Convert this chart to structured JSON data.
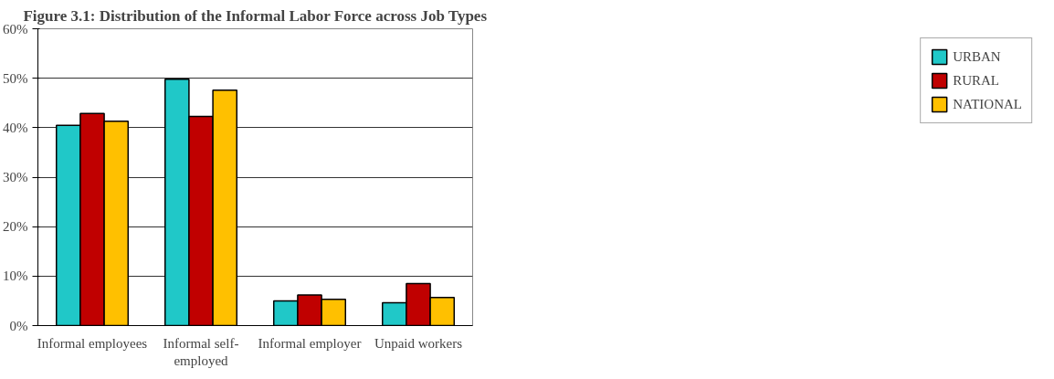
{
  "chart_data": {
    "type": "bar",
    "title": "Figure 3.1: Distribution of the Informal Labor Force across Job Types",
    "categories": [
      "Informal employees",
      "Informal self-employed",
      "Informal employer",
      "Unpaid workers"
    ],
    "series": [
      {
        "name": "URBAN",
        "color": "#20c8c8",
        "values": [
          40.5,
          49.8,
          5.0,
          4.6
        ]
      },
      {
        "name": "RURAL",
        "color": "#c00000",
        "values": [
          42.9,
          42.3,
          6.2,
          8.5
        ]
      },
      {
        "name": "NATIONAL",
        "color": "#ffc000",
        "values": [
          41.3,
          47.6,
          5.3,
          5.7
        ]
      }
    ],
    "ylim": [
      0,
      60
    ],
    "yticks": [
      {
        "value": 0,
        "label": "0%"
      },
      {
        "value": 10,
        "label": "10%"
      },
      {
        "value": 20,
        "label": "20%"
      },
      {
        "value": 30,
        "label": "30%"
      },
      {
        "value": 40,
        "label": "40%"
      },
      {
        "value": 50,
        "label": "50%"
      },
      {
        "value": 60,
        "label": "60%"
      }
    ],
    "grid": "y",
    "legend": "right"
  }
}
